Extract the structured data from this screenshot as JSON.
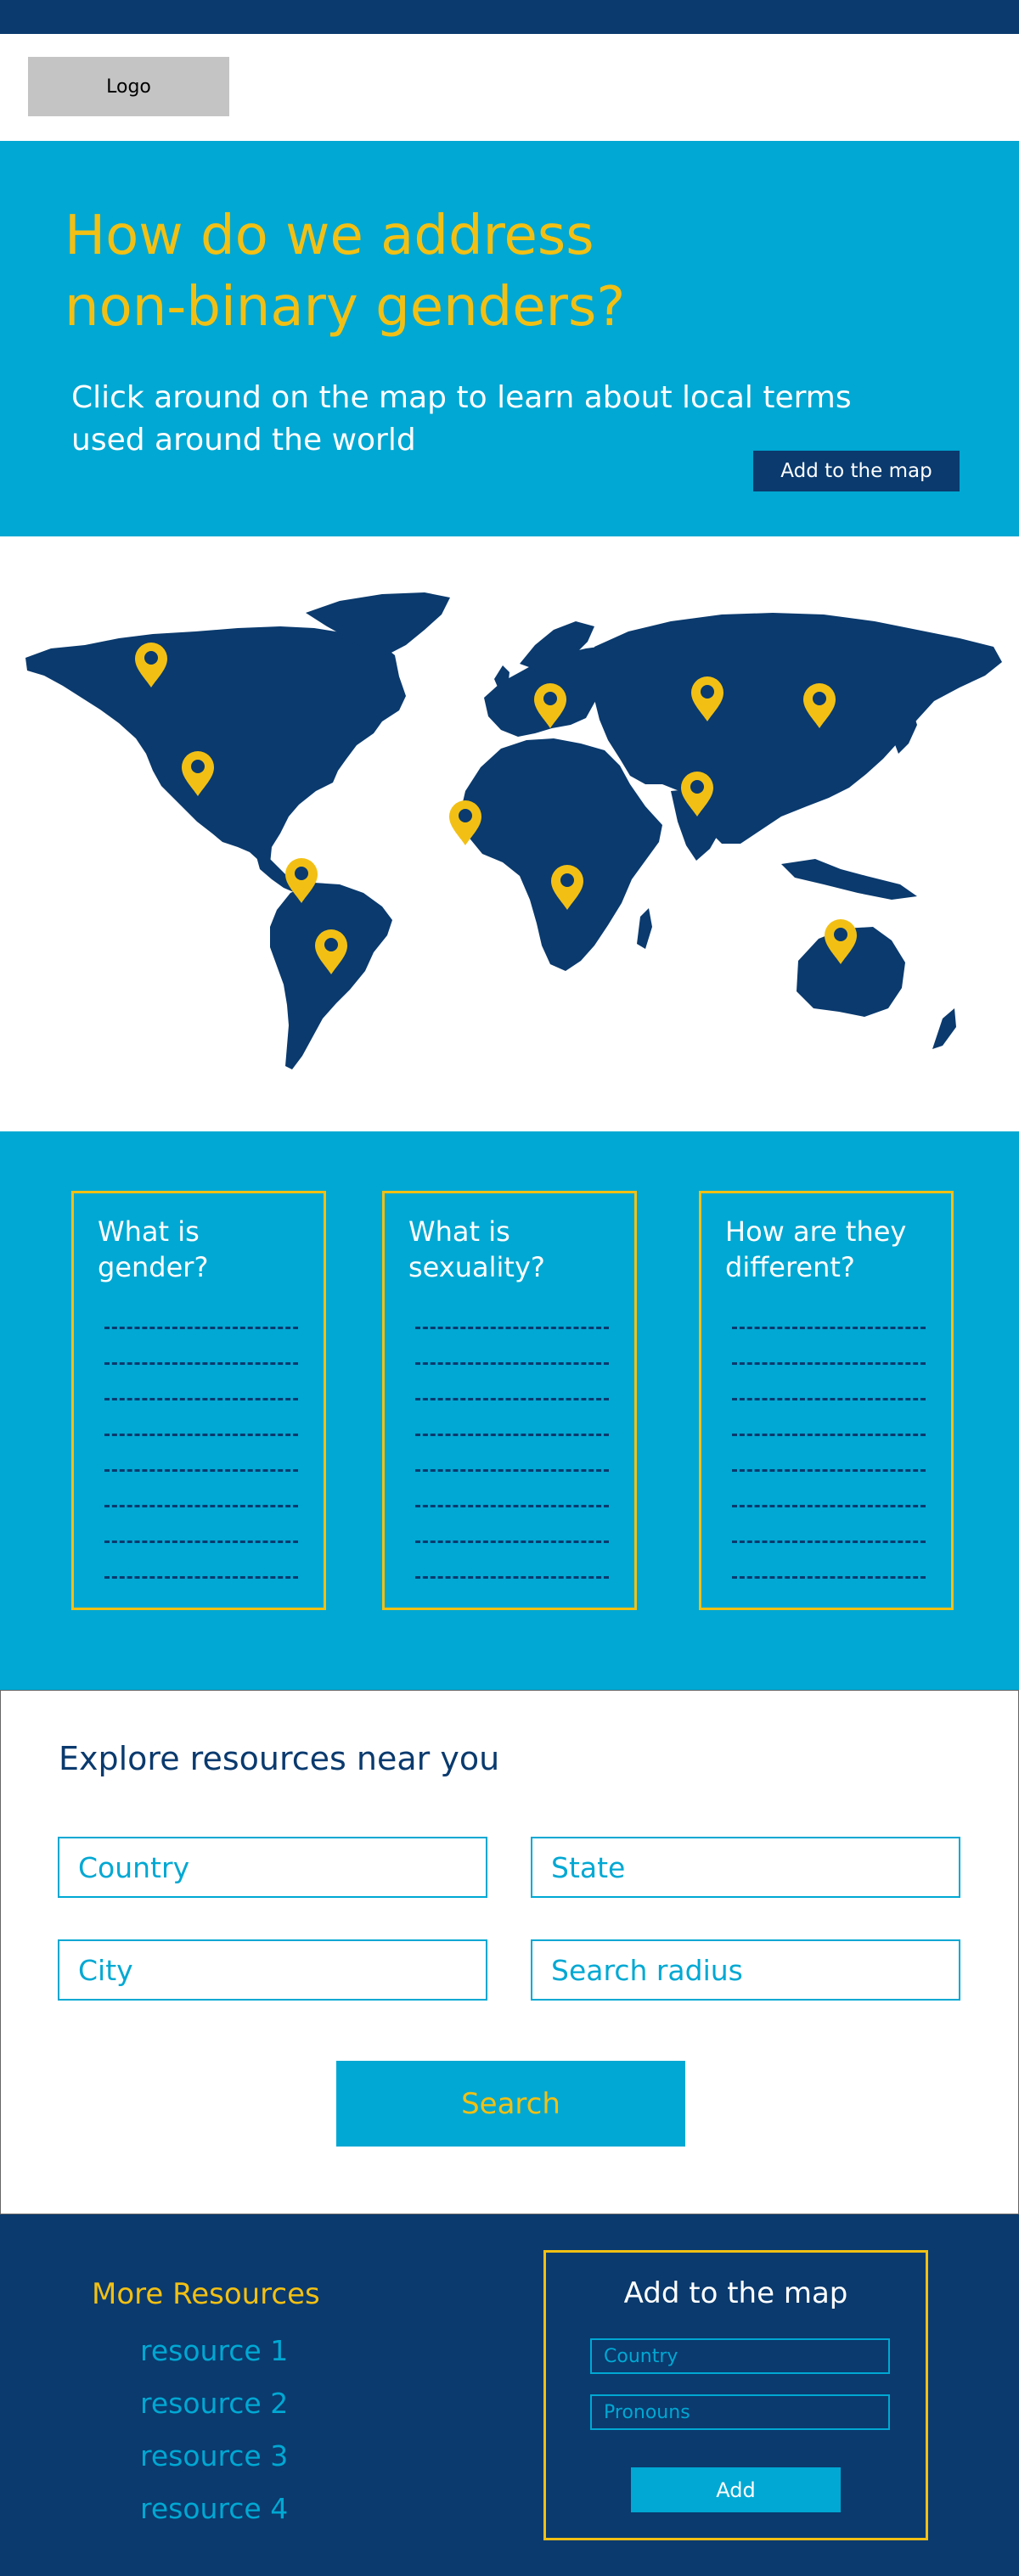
{
  "colors": {
    "navy": "#0a3a6e",
    "cyan": "#00a8d3",
    "gold": "#f2c014",
    "white": "#ffffff"
  },
  "header": {
    "logo_text": "Logo"
  },
  "hero": {
    "title_line1": "How do we address",
    "title_line2": "non-binary genders?",
    "subtitle_line1": "Click around on the map to learn about local terms",
    "subtitle_line2": "used around the world",
    "add_button": "Add to the map"
  },
  "map": {
    "marker_icon": "map-pin-icon",
    "marker_count": 11
  },
  "cards": [
    {
      "title_line1": "What is",
      "title_line2": "gender?"
    },
    {
      "title_line1": "What is",
      "title_line2": "sexuality?"
    },
    {
      "title_line1": "How are they",
      "title_line2": "different?"
    }
  ],
  "explore": {
    "title": "Explore resources near you",
    "country_placeholder": "Country",
    "state_placeholder": "State",
    "city_placeholder": "City",
    "radius_placeholder": "Search radius",
    "search_button": "Search"
  },
  "footer": {
    "more_title": "More Resources",
    "resources": [
      "resource 1",
      "resource 2",
      "resource 3",
      "resource 4"
    ],
    "add_title": "Add to the map",
    "country_placeholder": "Country",
    "pronouns_placeholder": "Pronouns",
    "add_button": "Add"
  }
}
